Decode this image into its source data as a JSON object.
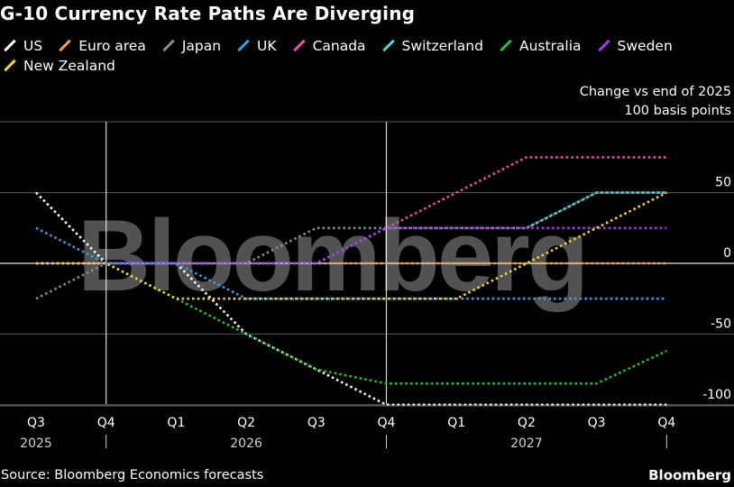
{
  "title": "G-10 Currency Rate Paths Are Diverging",
  "unit_note": [
    "Change vs end of 2025",
    "100 basis points"
  ],
  "source": "Source: Bloomberg Economics forecasts",
  "brand": "Bloomberg",
  "watermark": "Bloomberg",
  "chart_data": {
    "type": "line",
    "ylim": [
      -100,
      75
    ],
    "yticks": [
      {
        "value": 50,
        "label": "50"
      },
      {
        "value": 0,
        "label": "0"
      },
      {
        "value": -50,
        "label": "-50"
      },
      {
        "value": -100,
        "label": "-100"
      }
    ],
    "x_labels": [
      "Q3",
      "Q4",
      "Q1",
      "Q2",
      "Q3",
      "Q4",
      "Q1",
      "Q2",
      "Q3",
      "Q4"
    ],
    "year_labels": [
      {
        "label": "2025",
        "at": 0
      },
      {
        "label": "2026",
        "at": 3
      },
      {
        "label": "2027",
        "at": 7
      }
    ],
    "series": [
      {
        "name": "US",
        "color": "#ffffff",
        "values": [
          50,
          0,
          0,
          -50,
          -75,
          -100,
          -100,
          -100,
          -100,
          -100
        ]
      },
      {
        "name": "Euro area",
        "color": "#f7a13d",
        "values": [
          0,
          0,
          0,
          0,
          0,
          0,
          0,
          0,
          0,
          0
        ]
      },
      {
        "name": "Japan",
        "color": "#8c8c8c",
        "values": [
          -25,
          0,
          0,
          0,
          25,
          25,
          25,
          25,
          50,
          50
        ]
      },
      {
        "name": "UK",
        "color": "#3a9fe8",
        "values": [
          25,
          0,
          0,
          -25,
          -25,
          -25,
          -25,
          -25,
          -25,
          -25
        ]
      },
      {
        "name": "Canada",
        "color": "#ec4fb0",
        "values": [
          0,
          0,
          0,
          0,
          0,
          25,
          50,
          75,
          75,
          75
        ]
      },
      {
        "name": "Switzerland",
        "color": "#4fd4e0",
        "values": [
          0,
          0,
          0,
          0,
          0,
          25,
          25,
          25,
          50,
          50
        ]
      },
      {
        "name": "Australia",
        "color": "#25c13c",
        "values": [
          0,
          0,
          -25,
          -50,
          -75,
          -85,
          -85,
          -85,
          -85,
          -62
        ]
      },
      {
        "name": "Sweden",
        "color": "#a83cf0",
        "values": [
          0,
          0,
          0,
          0,
          0,
          25,
          25,
          25,
          25,
          25
        ]
      },
      {
        "name": "New Zealand",
        "color": "#f5d33a",
        "values": [
          0,
          0,
          -25,
          -25,
          -25,
          -25,
          -25,
          0,
          25,
          50
        ]
      }
    ]
  }
}
